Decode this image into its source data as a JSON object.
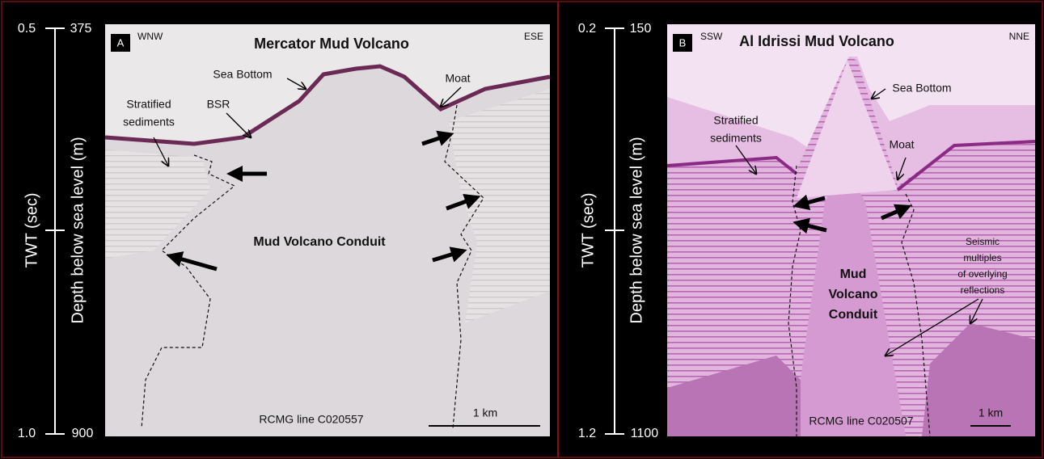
{
  "panels": [
    {
      "label": "A",
      "title": "Mercator Mud Volcano",
      "left_direction": "WNW",
      "right_direction": "ESE",
      "twt_label": "TWT  (sec)",
      "depth_label": "Depth below sea level  (m)",
      "twt_ticks": [
        "0.5",
        "1.0"
      ],
      "depth_ticks": [
        "375",
        "900"
      ],
      "annotations": [
        [
          "Sea Bottom"
        ],
        [
          "Moat"
        ],
        [
          "BSR"
        ],
        [
          "Stratified",
          "sediments"
        ],
        [
          "Mud Volcano  Conduit"
        ]
      ],
      "line_name": "RCMG line C020557",
      "scale": "1 km"
    },
    {
      "label": "B",
      "title": "Al  Idrissi Mud Volcano",
      "left_direction": "SSW",
      "right_direction": "NNE",
      "twt_label": "TWT  (sec)",
      "depth_label": "Depth below sea level  (m)",
      "twt_ticks": [
        "0.2",
        "1.2"
      ],
      "depth_ticks": [
        "150",
        "1100"
      ],
      "annotations": [
        [
          "Sea Bottom"
        ],
        [
          "Stratified",
          "sediments"
        ],
        [
          "Moat"
        ],
        [
          "Mud",
          "Volcano",
          "Conduit"
        ],
        [
          "Seismic",
          "multiples",
          "of overlying",
          "reflections"
        ]
      ],
      "line_name": "RCMG line C020507",
      "scale": "1 km"
    }
  ]
}
